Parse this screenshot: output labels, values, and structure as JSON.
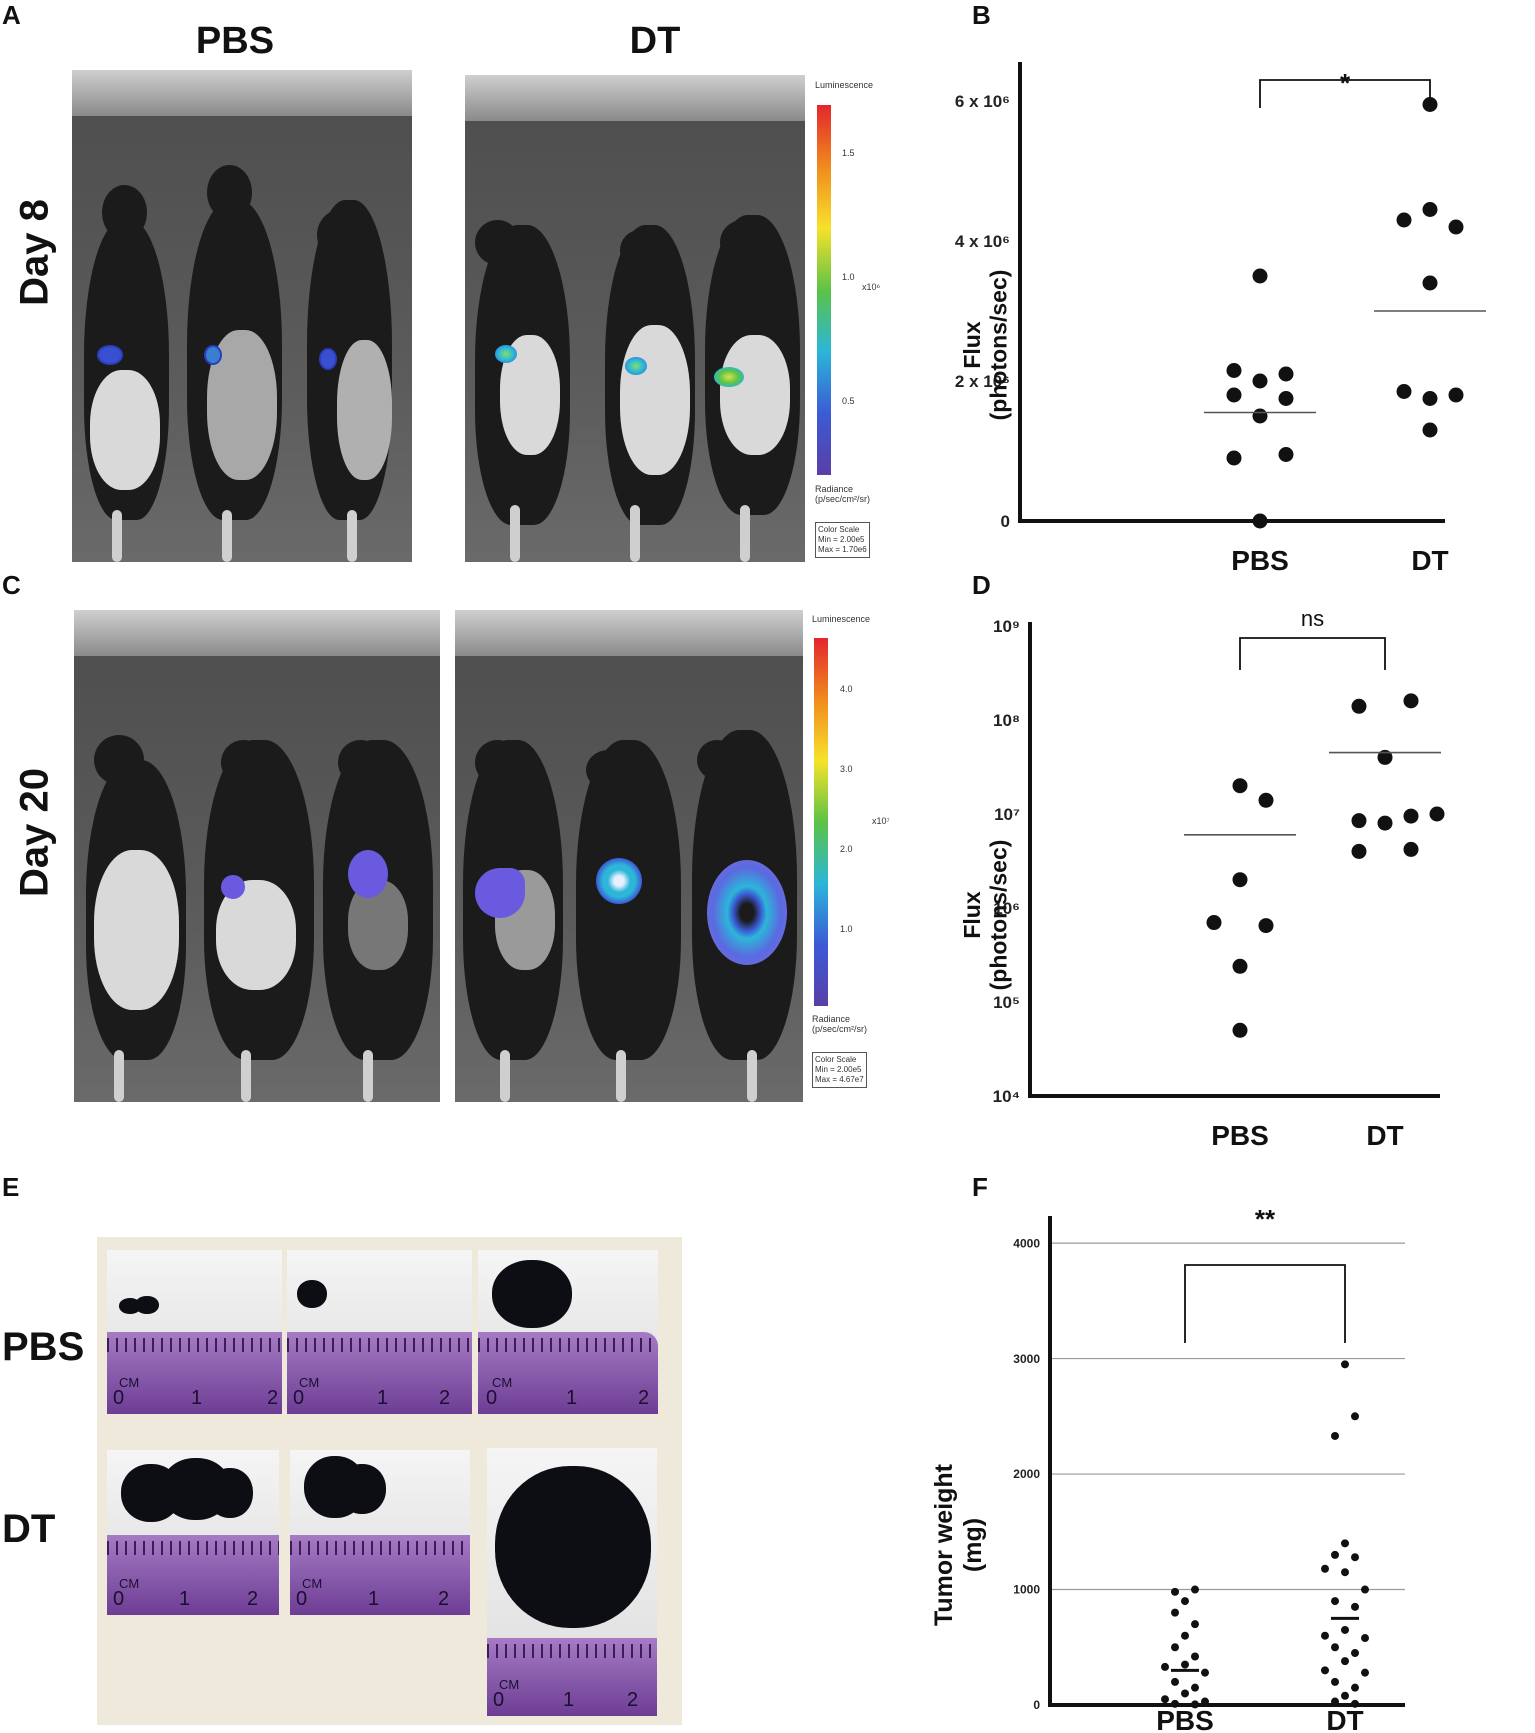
{
  "panels": {
    "a": {
      "letter": "A",
      "groups": [
        "PBS",
        "DT"
      ],
      "row_label": "Day 8",
      "colorbar": {
        "title": "Luminescence",
        "ticks": [
          "1.5",
          "1.0",
          "0.5"
        ],
        "exp": "x10⁶",
        "units": "Radiance\n(p/sec/cm²/sr)",
        "scale": "Color Scale\nMin = 2.00e5\nMax = 1.70e6"
      }
    },
    "b": {
      "letter": "B"
    },
    "c": {
      "letter": "C",
      "row_label": "Day 20",
      "colorbar": {
        "title": "Luminescence",
        "ticks": [
          "4.0",
          "3.0",
          "2.0",
          "1.0"
        ],
        "exp": "x10⁷",
        "units": "Radiance\n(p/sec/cm²/sr)",
        "scale": "Color Scale\nMin = 2.00e5\nMax = 4.67e7"
      }
    },
    "d": {
      "letter": "D"
    },
    "e": {
      "letter": "E",
      "rows": [
        "PBS",
        "DT"
      ],
      "ruler_unit": "CM",
      "ruler_numbers": [
        "0",
        "1",
        "2"
      ]
    },
    "f": {
      "letter": "F"
    }
  },
  "chart_data": [
    {
      "panel": "B",
      "type": "scatter",
      "ylabel": "Flux\n(photons/sec)",
      "categories": [
        "PBS",
        "DT"
      ],
      "ylim": [
        0,
        6500000
      ],
      "yticks": [
        {
          "v": 0,
          "label": "0"
        },
        {
          "v": 2000000,
          "label": "2 x 10⁶"
        },
        {
          "v": 4000000,
          "label": "4 x 10⁶"
        },
        {
          "v": 6000000,
          "label": "6 x 10⁶"
        }
      ],
      "series": [
        {
          "category": "PBS",
          "mean": 1550000,
          "points": [
            {
              "dx": 0,
              "y": 3500000
            },
            {
              "dx": -1,
              "y": 2150000
            },
            {
              "dx": 0,
              "y": 2000000
            },
            {
              "dx": 1,
              "y": 2100000
            },
            {
              "dx": -1,
              "y": 1800000
            },
            {
              "dx": 1,
              "y": 1750000
            },
            {
              "dx": -1,
              "y": 900000
            },
            {
              "dx": 1,
              "y": 950000
            },
            {
              "dx": 0,
              "y": 0
            },
            {
              "dx": 0,
              "y": 1500000
            }
          ]
        },
        {
          "category": "DT",
          "mean": 3000000,
          "points": [
            {
              "dx": 0,
              "y": 5950000
            },
            {
              "dx": 0,
              "y": 4450000
            },
            {
              "dx": -1,
              "y": 4300000
            },
            {
              "dx": 1,
              "y": 4200000
            },
            {
              "dx": 0,
              "y": 3400000
            },
            {
              "dx": -1,
              "y": 1850000
            },
            {
              "dx": 0,
              "y": 1750000
            },
            {
              "dx": 1,
              "y": 1800000
            },
            {
              "dx": 0,
              "y": 1300000
            }
          ]
        }
      ],
      "significance": "*"
    },
    {
      "panel": "D",
      "type": "scatter",
      "ylabel": "Flux\n(photons/sec)",
      "categories": [
        "PBS",
        "DT"
      ],
      "yscale": "log",
      "ylim": [
        10000,
        1000000000
      ],
      "yticks": [
        {
          "v": 10000,
          "label": "10⁴"
        },
        {
          "v": 100000,
          "label": "10⁵"
        },
        {
          "v": 1000000,
          "label": "10⁶"
        },
        {
          "v": 10000000,
          "label": "10⁷"
        },
        {
          "v": 100000000,
          "label": "10⁸"
        },
        {
          "v": 1000000000,
          "label": "10⁹"
        }
      ],
      "series": [
        {
          "category": "PBS",
          "mean": 6000000,
          "points": [
            {
              "dx": 0,
              "y": 20000000
            },
            {
              "dx": 1,
              "y": 14000000
            },
            {
              "dx": 0,
              "y": 2000000
            },
            {
              "dx": -1,
              "y": 700000
            },
            {
              "dx": 1,
              "y": 650000
            },
            {
              "dx": 0,
              "y": 240000
            },
            {
              "dx": 0,
              "y": 50000
            }
          ]
        },
        {
          "category": "DT",
          "mean": 45000000,
          "points": [
            {
              "dx": -1,
              "y": 140000000
            },
            {
              "dx": 1,
              "y": 160000000
            },
            {
              "dx": 0,
              "y": 40000000
            },
            {
              "dx": -1,
              "y": 8500000
            },
            {
              "dx": 0,
              "y": 8000000
            },
            {
              "dx": 1,
              "y": 9500000
            },
            {
              "dx": 2,
              "y": 10000000
            },
            {
              "dx": -1,
              "y": 4000000
            },
            {
              "dx": 1,
              "y": 4200000
            }
          ]
        }
      ],
      "significance": "ns"
    },
    {
      "panel": "F",
      "type": "scatter",
      "ylabel": "Tumor weight\n(mg)",
      "categories": [
        "PBS",
        "DT"
      ],
      "ylim": [
        0,
        4200
      ],
      "grid": true,
      "yticks": [
        {
          "v": 0,
          "label": "0"
        },
        {
          "v": 1000,
          "label": "1000"
        },
        {
          "v": 2000,
          "label": "2000"
        },
        {
          "v": 3000,
          "label": "3000"
        },
        {
          "v": 4000,
          "label": "4000"
        }
      ],
      "series": [
        {
          "category": "PBS",
          "mean": 300,
          "points": [
            {
              "dx": -1,
              "y": 980
            },
            {
              "dx": 1,
              "y": 1000
            },
            {
              "dx": 0,
              "y": 900
            },
            {
              "dx": -1,
              "y": 800
            },
            {
              "dx": 1,
              "y": 700
            },
            {
              "dx": 0,
              "y": 600
            },
            {
              "dx": -1,
              "y": 500
            },
            {
              "dx": 1,
              "y": 420
            },
            {
              "dx": 0,
              "y": 350
            },
            {
              "dx": -2,
              "y": 330
            },
            {
              "dx": 2,
              "y": 280
            },
            {
              "dx": -1,
              "y": 200
            },
            {
              "dx": 1,
              "y": 150
            },
            {
              "dx": 0,
              "y": 100
            },
            {
              "dx": -2,
              "y": 50
            },
            {
              "dx": 2,
              "y": 30
            },
            {
              "dx": -1,
              "y": 10
            },
            {
              "dx": 1,
              "y": 5
            }
          ]
        },
        {
          "category": "DT",
          "mean": 750,
          "points": [
            {
              "dx": 0,
              "y": 2950
            },
            {
              "dx": 1,
              "y": 2500
            },
            {
              "dx": -1,
              "y": 2330
            },
            {
              "dx": 0,
              "y": 1400
            },
            {
              "dx": -1,
              "y": 1300
            },
            {
              "dx": 1,
              "y": 1280
            },
            {
              "dx": -2,
              "y": 1180
            },
            {
              "dx": 0,
              "y": 1150
            },
            {
              "dx": 2,
              "y": 1000
            },
            {
              "dx": -1,
              "y": 900
            },
            {
              "dx": 1,
              "y": 850
            },
            {
              "dx": 0,
              "y": 650
            },
            {
              "dx": -2,
              "y": 600
            },
            {
              "dx": 2,
              "y": 580
            },
            {
              "dx": -1,
              "y": 500
            },
            {
              "dx": 1,
              "y": 450
            },
            {
              "dx": 0,
              "y": 380
            },
            {
              "dx": -2,
              "y": 300
            },
            {
              "dx": 2,
              "y": 280
            },
            {
              "dx": -1,
              "y": 200
            },
            {
              "dx": 1,
              "y": 150
            },
            {
              "dx": 0,
              "y": 80
            },
            {
              "dx": -1,
              "y": 30
            },
            {
              "dx": 1,
              "y": 10
            }
          ]
        }
      ],
      "significance": "**"
    }
  ]
}
